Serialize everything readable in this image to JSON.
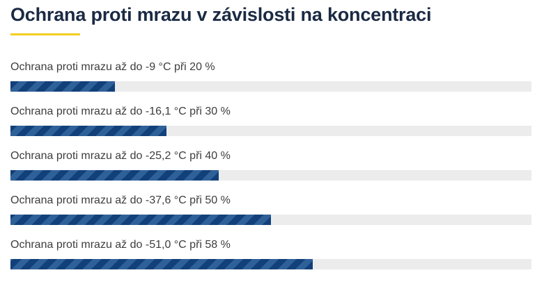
{
  "title": "Ochrana proti mrazu v závislosti na koncentraci",
  "colors": {
    "title_underline": "#f2cf1f",
    "bar_track": "#ececec",
    "bar_stripe_dark": "#12407a",
    "bar_stripe_light": "#2f6199"
  },
  "rows": [
    {
      "label": "Ochrana proti mrazu až do -9 °C při 20 %",
      "fill_fraction": 0.2
    },
    {
      "label": "Ochrana proti mrazu až do -16,1 °C při 30 %",
      "fill_fraction": 0.3
    },
    {
      "label": "Ochrana proti mrazu až do -25,2 °C při 40 %",
      "fill_fraction": 0.4
    },
    {
      "label": "Ochrana proti mrazu až do -37,6 °C při 50 %",
      "fill_fraction": 0.5
    },
    {
      "label": "Ochrana proti mrazu až do -51,0 °C při 58 %",
      "fill_fraction": 0.58
    }
  ]
}
